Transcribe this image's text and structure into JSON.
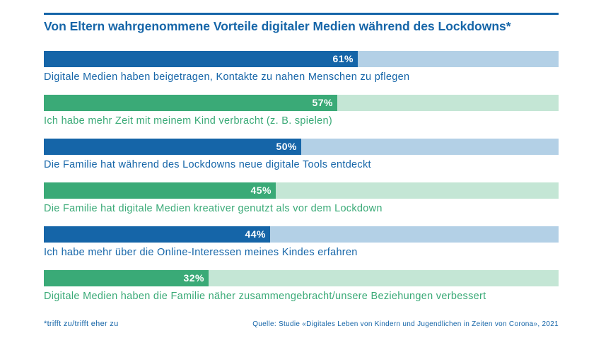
{
  "title": "Von Eltern wahrgenommene Vorteile digitaler Medien während des Lockdowns*",
  "footnote": "*trifft zu/trifft eher zu",
  "source": "Quelle: Studie «Digitales Leben von Kindern und Jugendlichen in Zeiten von Corona», 2021",
  "colors": {
    "blue_fill": "#1565a8",
    "blue_track": "#b3d0e6",
    "green_fill": "#3aaa77",
    "green_track": "#c4e6d5"
  },
  "chart_data": {
    "type": "bar",
    "orientation": "horizontal",
    "title": "Von Eltern wahrgenommene Vorteile digitaler Medien während des Lockdowns*",
    "xlim": [
      0,
      100
    ],
    "unit": "%",
    "categories": [
      "Digitale Medien haben beigetragen, Kontakte zu nahen Menschen zu pflegen",
      "Ich habe mehr Zeit mit meinem Kind verbracht (z. B. spielen)",
      "Die Familie hat während des Lockdowns neue digitale Tools entdeckt",
      "Die Familie hat digitale Medien kreativer genutzt als vor dem Lockdown",
      "Ich habe mehr über die Online-Interessen meines Kindes erfahren",
      "Digitale Medien haben die Familie näher zusammengebracht/unsere Beziehungen verbessert"
    ],
    "values": [
      61,
      57,
      50,
      45,
      44,
      32
    ],
    "value_labels": [
      "61%",
      "57%",
      "50%",
      "45%",
      "44%",
      "32%"
    ],
    "colors": [
      "blue",
      "green",
      "blue",
      "green",
      "blue",
      "green"
    ]
  }
}
